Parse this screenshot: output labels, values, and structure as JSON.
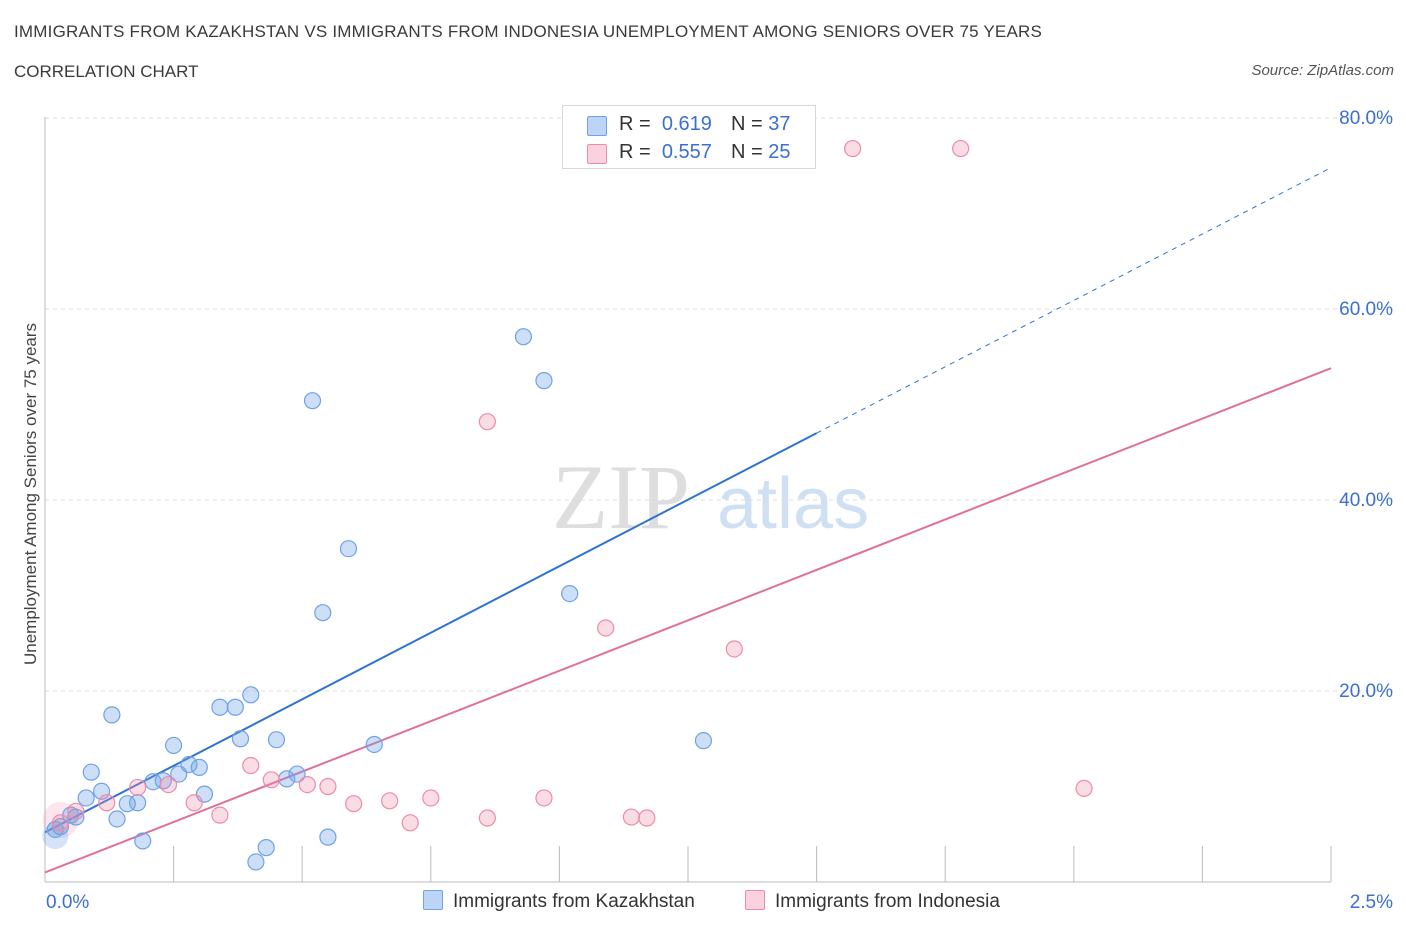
{
  "title": "IMMIGRANTS FROM KAZAKHSTAN VS IMMIGRANTS FROM INDONESIA UNEMPLOYMENT AMONG SENIORS OVER 75 YEARS",
  "subtitle": "CORRELATION CHART",
  "source": "Source: ZipAtlas.com",
  "watermark": {
    "zip": "ZIP",
    "atlas": "atlas"
  },
  "legend": {
    "kaz": {
      "r_label": "R =",
      "r_value": "0.619",
      "n_label": "N =",
      "n_value": "37"
    },
    "ind": {
      "r_label": "R =",
      "r_value": "0.557",
      "n_label": "N =",
      "n_value": "25"
    }
  },
  "colors": {
    "kaz": "#6fa2e6",
    "ind": "#f08aa8",
    "kaz_line": "#2e73cf",
    "ind_line": "#e0709a",
    "tick_label": "#3b6fd0"
  },
  "chart_data": {
    "type": "scatter",
    "title": "IMMIGRANTS FROM KAZAKHSTAN VS IMMIGRANTS FROM INDONESIA UNEMPLOYMENT AMONG SENIORS OVER 75 YEARS",
    "xlabel": "",
    "ylabel": "Unemployment Among Seniors over 75 years",
    "xlim": [
      0,
      2.5
    ],
    "ylim": [
      0,
      80
    ],
    "x_tick_labels": [
      "0.0%",
      "2.5%"
    ],
    "y_ticks": [
      20,
      40,
      60,
      80
    ],
    "y_tick_labels": [
      "20.0%",
      "40.0%",
      "60.0%",
      "80.0%"
    ],
    "grid": true,
    "series": [
      {
        "name": "Immigrants from Kazakhstan",
        "points": [
          [
            0.02,
            5.5
          ],
          [
            0.03,
            5.8
          ],
          [
            0.05,
            7.0
          ],
          [
            0.06,
            6.8
          ],
          [
            0.08,
            8.8
          ],
          [
            0.09,
            11.5
          ],
          [
            0.11,
            9.5
          ],
          [
            0.13,
            17.5
          ],
          [
            0.14,
            6.6
          ],
          [
            0.16,
            8.2
          ],
          [
            0.18,
            8.3
          ],
          [
            0.19,
            4.3
          ],
          [
            0.21,
            10.5
          ],
          [
            0.23,
            10.6
          ],
          [
            0.25,
            14.3
          ],
          [
            0.26,
            11.3
          ],
          [
            0.28,
            12.3
          ],
          [
            0.3,
            12.0
          ],
          [
            0.31,
            9.2
          ],
          [
            0.34,
            18.3
          ],
          [
            0.37,
            18.3
          ],
          [
            0.38,
            15.0
          ],
          [
            0.4,
            19.6
          ],
          [
            0.41,
            2.1
          ],
          [
            0.43,
            3.6
          ],
          [
            0.45,
            14.9
          ],
          [
            0.47,
            10.8
          ],
          [
            0.49,
            11.3
          ],
          [
            0.52,
            50.4
          ],
          [
            0.54,
            28.2
          ],
          [
            0.55,
            4.7
          ],
          [
            0.59,
            34.9
          ],
          [
            0.64,
            14.4
          ],
          [
            0.93,
            57.1
          ],
          [
            0.97,
            52.5
          ],
          [
            1.02,
            30.2
          ],
          [
            1.28,
            14.8
          ]
        ],
        "trend": {
          "x0": 0.0,
          "y0": 5.2,
          "x1": 1.5,
          "y1": 47.0,
          "dashed_to_x": 2.5,
          "dashed_to_y": 74.8
        }
      },
      {
        "name": "Immigrants from Indonesia",
        "points": [
          [
            0.03,
            6.2
          ],
          [
            0.06,
            7.4
          ],
          [
            0.12,
            8.3
          ],
          [
            0.18,
            9.9
          ],
          [
            0.24,
            10.2
          ],
          [
            0.29,
            8.3
          ],
          [
            0.34,
            7.0
          ],
          [
            0.4,
            12.2
          ],
          [
            0.44,
            10.7
          ],
          [
            0.51,
            10.2
          ],
          [
            0.55,
            10.0
          ],
          [
            0.6,
            8.2
          ],
          [
            0.67,
            8.5
          ],
          [
            0.71,
            6.2
          ],
          [
            0.75,
            8.8
          ],
          [
            0.86,
            48.2
          ],
          [
            0.86,
            6.7
          ],
          [
            0.97,
            8.8
          ],
          [
            1.09,
            26.6
          ],
          [
            1.14,
            6.8
          ],
          [
            1.17,
            6.7
          ],
          [
            1.34,
            24.4
          ],
          [
            1.57,
            76.8
          ],
          [
            1.78,
            76.8
          ],
          [
            2.02,
            9.8
          ]
        ],
        "trend": {
          "x0": 0.0,
          "y0": 1.0,
          "x1": 2.5,
          "y1": 53.8
        }
      }
    ]
  },
  "bottom_legend": [
    "Immigrants from Kazakhstan",
    "Immigrants from Indonesia"
  ]
}
